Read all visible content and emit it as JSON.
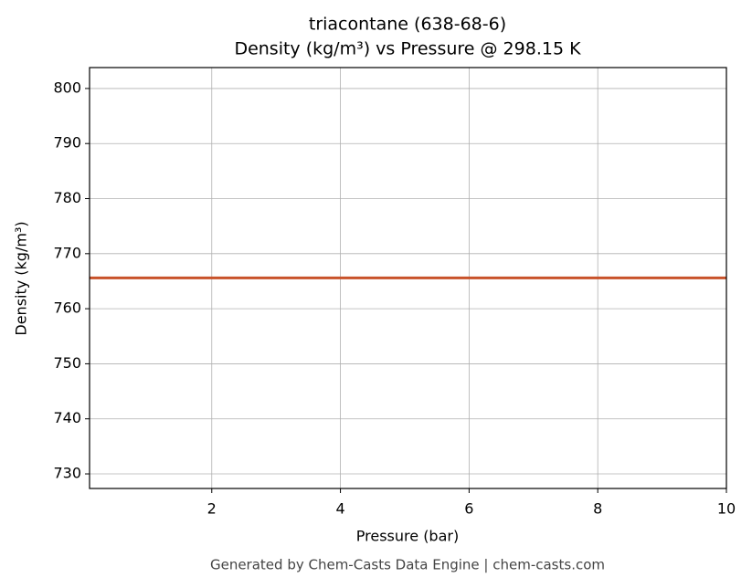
{
  "chart_data": {
    "type": "line",
    "title": "triacontane (638-68-6)",
    "subtitle": "Density (kg/m³) vs Pressure @ 298.15 K",
    "x_label": "Pressure (bar)",
    "y_label": "Density (kg/m³)",
    "footer": "Generated by Chem-Casts Data Engine | chem-casts.com",
    "x": [
      0.1,
      10
    ],
    "series": [
      {
        "name": "triacontane",
        "color": "#c8522a",
        "values": [
          765.6,
          765.6
        ]
      }
    ],
    "xlim": [
      0.1,
      10
    ],
    "xticks": [
      2,
      4,
      6,
      8,
      10
    ],
    "ylim": [
      727.35,
      803.8
    ],
    "yticks": [
      730,
      740,
      750,
      760,
      770,
      780,
      790,
      800
    ],
    "grid": true,
    "legend": false
  }
}
